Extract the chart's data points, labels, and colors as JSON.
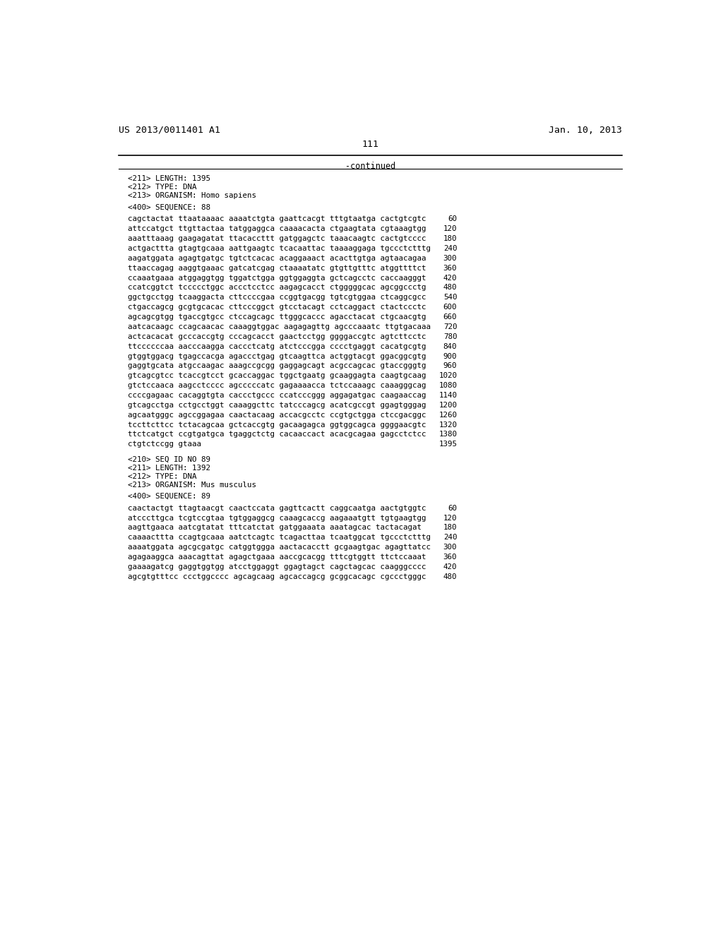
{
  "header_left": "US 2013/0011401 A1",
  "header_right": "Jan. 10, 2013",
  "page_number": "111",
  "continued_label": "-continued",
  "background_color": "#ffffff",
  "text_color": "#000000",
  "font_size_header": 9.5,
  "font_size_body": 7.8,
  "meta_lines_88": [
    "<211> LENGTH: 1395",
    "<212> TYPE: DNA",
    "<213> ORGANISM: Homo sapiens"
  ],
  "seq_label_88": "<400> SEQUENCE: 88",
  "sequence_lines_88": [
    [
      "cagctactat ttaataaaac aaaatctgta gaattcacgt tttgtaatga cactgtcgtc",
      "60"
    ],
    [
      "attccatgct ttgttactaa tatggaggca caaaacacta ctgaagtata cgtaaagtgg",
      "120"
    ],
    [
      "aaatttaaag gaagagatat ttacaccttt gatggagctc taaacaagtc cactgtcccc",
      "180"
    ],
    [
      "actgacttta gtagtgcaaa aattgaagtc tcacaattac taaaaggaga tgccctctttg",
      "240"
    ],
    [
      "aagatggata agagtgatgc tgtctcacac acaggaaact acacttgtga agtaacagaa",
      "300"
    ],
    [
      "ttaaccagag aaggtgaaac gatcatcgag ctaaaatatc gtgttgtttc atggttttct",
      "360"
    ],
    [
      "ccaaatgaaa atggaggtgg tggatctgga ggtggaggta gctcagcctc caccaagggt",
      "420"
    ],
    [
      "ccatcggtct tccccctggc accctcctcc aagagcacct ctgggggcac agcggccctg",
      "480"
    ],
    [
      "ggctgcctgg tcaaggacta cttccccgaa ccggtgacgg tgtcgtggaa ctcaggcgcc",
      "540"
    ],
    [
      "ctgaccagcg gcgtgcacac cttcccggct gtcctacagt cctcaggact ctactccctc",
      "600"
    ],
    [
      "agcagcgtgg tgaccgtgcc ctccagcagc ttgggcaccc agacctacat ctgcaacgtg",
      "660"
    ],
    [
      "aatcacaagc ccagcaacac caaaggtggac aagagagttg agcccaaatc ttgtgacaaa",
      "720"
    ],
    [
      "actcacacat gcccaccgtg cccagcacct gaactcctgg ggggaccgtc agtcttcctc",
      "780"
    ],
    [
      "ttccccccaa aacccaagga caccctcatg atctcccgga cccctgaggt cacatgcgtg",
      "840"
    ],
    [
      "gtggtggacg tgagccacga agaccctgag gtcaagttca actggtacgt ggacggcgtg",
      "900"
    ],
    [
      "gaggtgcata atgccaagac aaagccgcgg gaggagcagt acgccagcac gtaccgggtg",
      "960"
    ],
    [
      "gtcagcgtcc tcaccgtcct gcaccaggac tggctgaatg gcaaggagta caagtgcaag",
      "1020"
    ],
    [
      "gtctccaaca aagcctcccc agcccccatc gagaaaacca tctccaaagc caaagggcag",
      "1080"
    ],
    [
      "ccccgagaac cacaggtgta caccctgccc ccatcccggg aggagatgac caagaaccag",
      "1140"
    ],
    [
      "gtcagcctga cctgcctggt caaaggcttc tatcccagcg acatcgccgt ggagtgggag",
      "1200"
    ],
    [
      "agcaatgggc agccggagaa caactacaag accacgcctc ccgtgctgga ctccgacggc",
      "1260"
    ],
    [
      "tccttcttcc tctacagcaa gctcaccgtg gacaagagca ggtggcagca ggggaacgtc",
      "1320"
    ],
    [
      "ttctcatgct ccgtgatgca tgaggctctg cacaaccact acacgcagaa gagcctctcc",
      "1380"
    ],
    [
      "ctgtctccgg gtaaa",
      "1395"
    ]
  ],
  "meta_lines_89": [
    "<210> SEQ ID NO 89",
    "<211> LENGTH: 1392",
    "<212> TYPE: DNA",
    "<213> ORGANISM: Mus musculus"
  ],
  "seq_label_89": "<400> SEQUENCE: 89",
  "sequence_lines_89": [
    [
      "caactactgt ttagtaacgt caactccata gagttcactt caggcaatga aactgtggtc",
      "60"
    ],
    [
      "atcccttgca tcgtccgtaa tgtggaggcg caaagcaccg aagaaatgtt tgtgaagtgg",
      "120"
    ],
    [
      "aagttgaaca aatcgtatat tttcatctat gatggaaata aaatagcac tactacagat",
      "180"
    ],
    [
      "caaaacttta ccagtgcaaa aatctcagtc tcagacttaa tcaatggcat tgccctctttg",
      "240"
    ],
    [
      "aaaatggata agcgcgatgc catggtggga aactacacctt gcgaagtgac agagttatcc",
      "300"
    ],
    [
      "agagaaggca aaacagttat agagctgaaa aaccgcacgg tttcgtggtt ttctccaaat",
      "360"
    ],
    [
      "gaaaagatcg gaggtggtgg atcctggaggt ggagtagct cagctagcac caagggcccc",
      "420"
    ],
    [
      "agcgtgtttcc ccctggcccc agcagcaag agcaccagcg gcggcacagc cgccctgggc",
      "480"
    ]
  ]
}
